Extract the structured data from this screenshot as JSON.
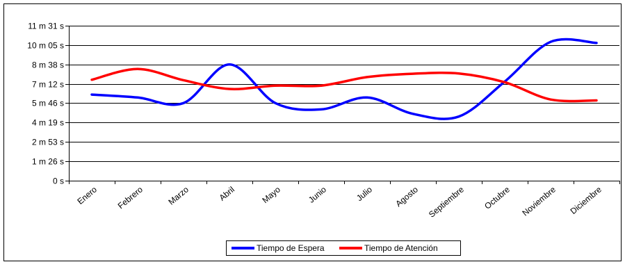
{
  "chart_data": {
    "type": "line",
    "categories": [
      "Enero",
      "Febrero",
      "Marzo",
      "Abril",
      "Mayo",
      "Junio",
      "Julio",
      "Agosto",
      "Septiembre",
      "Octubre",
      "Noviembre",
      "Diciembre"
    ],
    "y_tick_labels": [
      "0 s",
      "1 m 26 s",
      "2 m 53 s",
      "4 m 19 s",
      "5 m 46 s",
      "7 m 12 s",
      "8 m 38 s",
      "10 m 05 s",
      "11 m 31 s"
    ],
    "y_tick_values_seconds": [
      0,
      86,
      173,
      259,
      346,
      432,
      518,
      605,
      691
    ],
    "ylim_seconds": [
      0,
      691
    ],
    "grid": "horizontal",
    "legend_placement": "bottom",
    "series": [
      {
        "name": "Tiempo de Espera",
        "color": "#0000ff",
        "values_seconds": [
          384,
          371,
          346,
          518,
          346,
          318,
          371,
          298,
          286,
          442,
          619,
          614
        ]
      },
      {
        "name": "Tiempo de Atención",
        "color": "#ff0000",
        "values_seconds": [
          450,
          498,
          448,
          409,
          424,
          424,
          462,
          477,
          478,
          439,
          362,
          358
        ]
      }
    ]
  }
}
